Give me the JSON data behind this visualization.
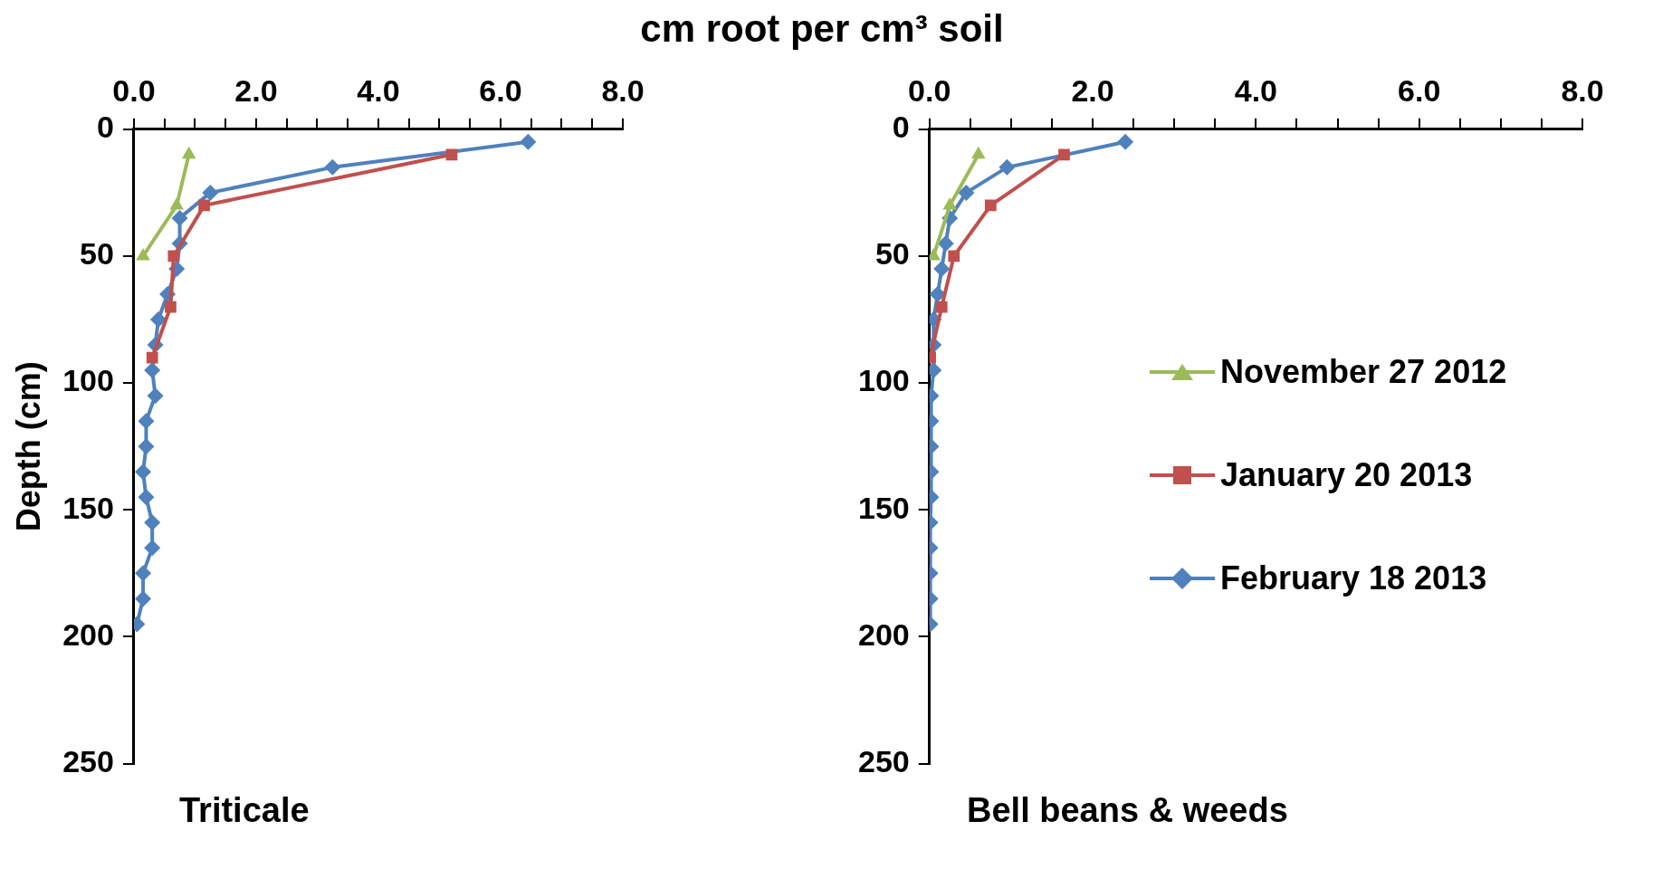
{
  "chart_data": [
    {
      "type": "line",
      "title": "cm root per cm³ soil",
      "xlabel": "Triticale",
      "ylabel": "Depth (cm)",
      "xlim": [
        0,
        8
      ],
      "ylim": [
        250,
        0
      ],
      "xticks": [
        {
          "value": 0,
          "label": "0.0"
        },
        {
          "value": 0.5,
          "label": null
        },
        {
          "value": 1,
          "label": null
        },
        {
          "value": 1.5,
          "label": null
        },
        {
          "value": 2,
          "label": "2.0"
        },
        {
          "value": 2.5,
          "label": null
        },
        {
          "value": 3,
          "label": null
        },
        {
          "value": 3.5,
          "label": null
        },
        {
          "value": 4,
          "label": "4.0"
        },
        {
          "value": 4.5,
          "label": null
        },
        {
          "value": 5,
          "label": null
        },
        {
          "value": 5.5,
          "label": null
        },
        {
          "value": 6,
          "label": "6.0"
        },
        {
          "value": 6.5,
          "label": null
        },
        {
          "value": 7,
          "label": null
        },
        {
          "value": 7.5,
          "label": null
        },
        {
          "value": 8,
          "label": "8.0"
        }
      ],
      "yticks": [
        0,
        50,
        100,
        150,
        200,
        250
      ],
      "grid": false,
      "legend": false,
      "series": [
        {
          "color": "#9bbb59",
          "marker": "triangle",
          "x": [
            0.9,
            0.7,
            0.15
          ],
          "values": [
            10,
            30,
            50
          ]
        },
        {
          "color": "#c0504d",
          "marker": "square",
          "x": [
            5.2,
            1.15,
            0.65,
            0.6,
            0.3
          ],
          "values": [
            10,
            30,
            50,
            70,
            90
          ]
        },
        {
          "color": "#4f81bd",
          "marker": "diamond",
          "x": [
            6.45,
            3.25,
            1.25,
            0.75,
            0.75,
            0.7,
            0.55,
            0.4,
            0.35,
            0.3,
            0.35,
            0.2,
            0.2,
            0.15,
            0.2,
            0.3,
            0.3,
            0.15,
            0.15,
            0.05
          ],
          "values": [
            5,
            15,
            25,
            35,
            45,
            55,
            65,
            75,
            85,
            95,
            105,
            115,
            125,
            135,
            145,
            155,
            165,
            175,
            185,
            195
          ]
        }
      ]
    },
    {
      "type": "line",
      "xlabel": "Bell beans & weeds",
      "xlim": [
        0,
        8
      ],
      "ylim": [
        250,
        0
      ],
      "xticks": [
        {
          "value": 0,
          "label": "0.0"
        },
        {
          "value": 0.5,
          "label": null
        },
        {
          "value": 1,
          "label": null
        },
        {
          "value": 1.5,
          "label": null
        },
        {
          "value": 2,
          "label": "2.0"
        },
        {
          "value": 2.5,
          "label": null
        },
        {
          "value": 3,
          "label": null
        },
        {
          "value": 3.5,
          "label": null
        },
        {
          "value": 4,
          "label": "4.0"
        },
        {
          "value": 4.5,
          "label": null
        },
        {
          "value": 5,
          "label": null
        },
        {
          "value": 5.5,
          "label": null
        },
        {
          "value": 6,
          "label": "6.0"
        },
        {
          "value": 6.5,
          "label": null
        },
        {
          "value": 7,
          "label": null
        },
        {
          "value": 7.5,
          "label": null
        },
        {
          "value": 8,
          "label": "8.0"
        }
      ],
      "yticks": [
        0,
        50,
        100,
        150,
        200,
        250
      ],
      "grid": false,
      "legend": "right",
      "series": [
        {
          "name": "November 27 2012",
          "color": "#9bbb59",
          "marker": "triangle",
          "x": [
            0.6,
            0.25,
            0.05
          ],
          "values": [
            10,
            30,
            50
          ]
        },
        {
          "name": "January 20 2013",
          "color": "#c0504d",
          "marker": "square",
          "x": [
            1.65,
            0.75,
            0.3,
            0.15,
            0.01
          ],
          "values": [
            10,
            30,
            50,
            70,
            90
          ]
        },
        {
          "name": "February 18 2013",
          "color": "#4f81bd",
          "marker": "diamond",
          "x": [
            2.4,
            0.95,
            0.45,
            0.25,
            0.2,
            0.15,
            0.1,
            0.05,
            0.05,
            0.05,
            0.02,
            0.02,
            0.02,
            0.02,
            0.02,
            0.01,
            0.01,
            0.01,
            0.01,
            0.01
          ],
          "values": [
            5,
            15,
            25,
            35,
            45,
            55,
            65,
            75,
            85,
            95,
            105,
            115,
            125,
            135,
            145,
            155,
            165,
            175,
            185,
            195
          ]
        }
      ]
    }
  ]
}
